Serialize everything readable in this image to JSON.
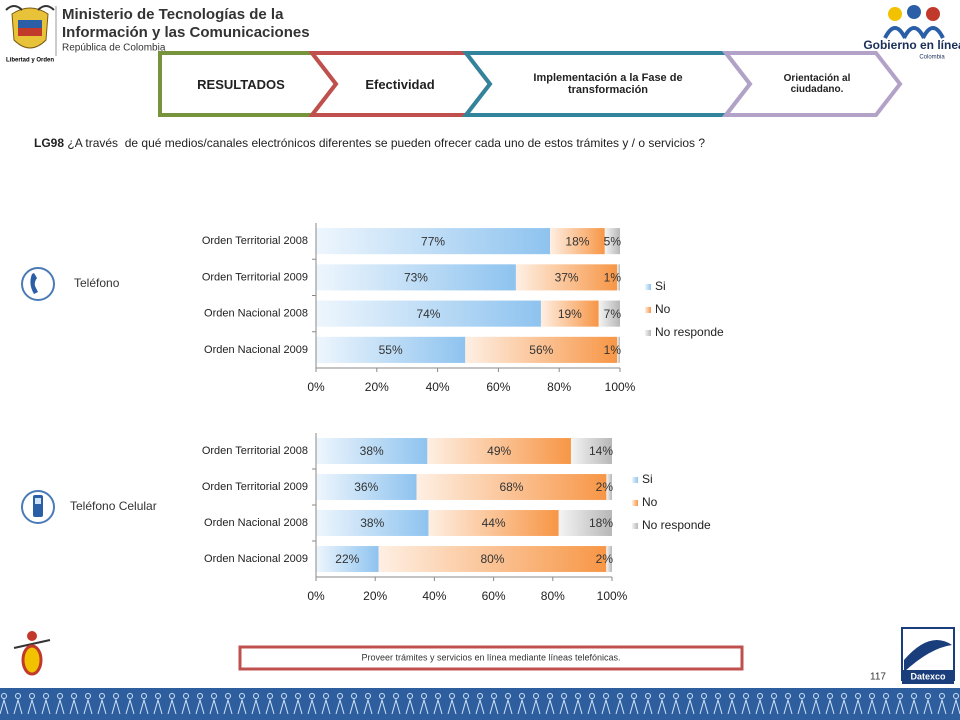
{
  "header": {
    "ministry": [
      "Ministerio de Tecnologías de la",
      "Información y las Comunicaciones"
    ],
    "republic": "República de Colombia",
    "motto": "Libertad y Orden",
    "brand": "Gobierno en línea",
    "brand_country": "Colombia"
  },
  "tabs": [
    "RESULTADOS",
    "Efectividad",
    "Implementación  a la Fase de transformación",
    "Orientación al ciudadano."
  ],
  "question": {
    "code": "LG98",
    "text": "¿A través  de qué medios/canales electrónicos diferentes se pueden ofrecer cada uno de estos trámites y / o servicios ?"
  },
  "chart_data": [
    {
      "type": "bar",
      "orientation": "horizontal",
      "stacking": "percent",
      "title": "Teléfono",
      "categories": [
        "Orden Territorial 2008",
        "Orden Territorial 2009",
        "Orden Nacional 2008",
        "Orden Nacional 2009"
      ],
      "series": [
        {
          "name": "Si",
          "color": "#8ec3ef",
          "values": [
            77,
            73,
            74,
            55
          ],
          "value_labels": [
            "77%",
            "73%",
            "74%",
            "55%"
          ]
        },
        {
          "name": "No",
          "color": "#f79646",
          "values": [
            18,
            37,
            19,
            56
          ],
          "value_labels": [
            "18%",
            "37%",
            "19%",
            "56%"
          ]
        },
        {
          "name": "No responde",
          "color": "#b7b7b7",
          "values": [
            5,
            1,
            7,
            1
          ],
          "value_labels": [
            "5%",
            "1%",
            "7%",
            "1%"
          ]
        }
      ],
      "xlim": [
        0,
        100
      ],
      "xticks": [
        {
          "value": 0,
          "label": "0%"
        },
        {
          "value": 20,
          "label": "20%"
        },
        {
          "value": 40,
          "label": "40%"
        },
        {
          "value": 60,
          "label": "60%"
        },
        {
          "value": 80,
          "label": "80%"
        },
        {
          "value": 100,
          "label": "100%"
        }
      ],
      "legend": "right"
    },
    {
      "type": "bar",
      "orientation": "horizontal",
      "stacking": "percent",
      "title": "Teléfono Celular",
      "categories": [
        "Orden Territorial 2008",
        "Orden Territorial 2009",
        "Orden Nacional 2008",
        "Orden Nacional 2009"
      ],
      "series": [
        {
          "name": "Si",
          "color": "#8ec3ef",
          "values": [
            38,
            36,
            38,
            22
          ],
          "value_labels": [
            "38%",
            "36%",
            "38%",
            "22%"
          ]
        },
        {
          "name": "No",
          "color": "#f79646",
          "values": [
            49,
            68,
            44,
            80
          ],
          "value_labels": [
            "49%",
            "68%",
            "44%",
            "80%"
          ]
        },
        {
          "name": "No responde",
          "color": "#b7b7b7",
          "values": [
            14,
            2,
            18,
            2
          ],
          "value_labels": [
            "14%",
            "2%",
            "18%",
            "2%"
          ]
        }
      ],
      "xlim": [
        0,
        100
      ],
      "xticks": [
        {
          "value": 0,
          "label": "0%"
        },
        {
          "value": 20,
          "label": "20%"
        },
        {
          "value": 40,
          "label": "40%"
        },
        {
          "value": 60,
          "label": "60%"
        },
        {
          "value": 80,
          "label": "80%"
        },
        {
          "value": 100,
          "label": "100%"
        }
      ],
      "legend": "right"
    }
  ],
  "footer": {
    "note": "Proveer trámites y servicios en línea mediante líneas telefónicas.",
    "page": "117",
    "company": "Datexco"
  }
}
